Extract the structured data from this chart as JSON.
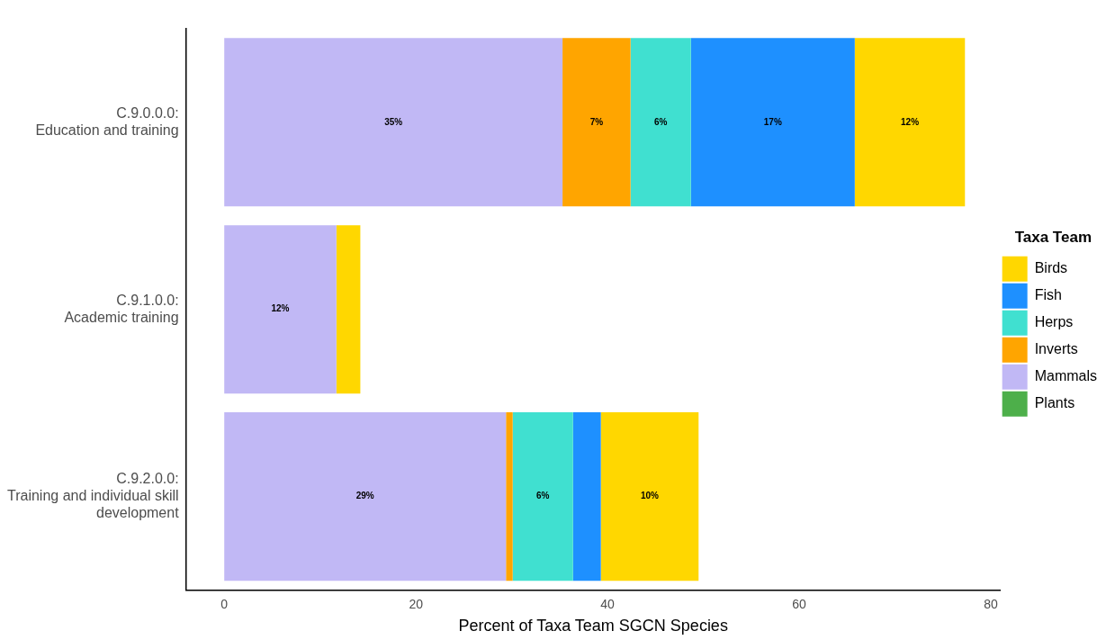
{
  "chart_data": {
    "type": "bar",
    "orientation": "horizontal",
    "stacked": true,
    "xlabel": "Percent of Taxa Team SGCN Species",
    "legend_title": "Taxa Team",
    "legend": "right",
    "grid": false,
    "categories": [
      "C.9.0.0.0: Education and training",
      "C.9.1.0.0: Academic training",
      "C.9.2.0.0: Training and individual skill development"
    ],
    "xlim": [
      -4,
      81
    ],
    "xticks": [
      0,
      20,
      40,
      60,
      80
    ],
    "series": [
      {
        "name": "Plants",
        "color": "#4daf4a",
        "values": [
          null,
          null,
          null
        ]
      },
      {
        "name": "Mammals",
        "color": "#c1b8f5",
        "values": [
          35.3,
          11.7,
          29.4
        ],
        "value_labels": [
          "35%",
          "12%",
          "29%"
        ]
      },
      {
        "name": "Inverts",
        "color": "#ffa500",
        "values": [
          7.1,
          null,
          0.7
        ],
        "value_labels": [
          "7%",
          null,
          null
        ]
      },
      {
        "name": "Herps",
        "color": "#40e0d0",
        "values": [
          6.3,
          null,
          6.3
        ],
        "value_labels": [
          "6%",
          null,
          "6%"
        ]
      },
      {
        "name": "Fish",
        "color": "#1e90ff",
        "values": [
          17.1,
          null,
          2.9
        ],
        "value_labels": [
          "17%",
          null,
          null
        ]
      },
      {
        "name": "Birds",
        "color": "#ffd700",
        "values": [
          11.5,
          2.5,
          10.2
        ],
        "value_labels": [
          "12%",
          null,
          "10%"
        ]
      }
    ]
  }
}
